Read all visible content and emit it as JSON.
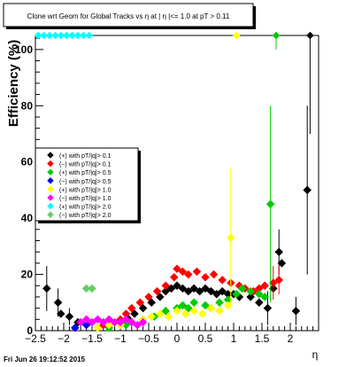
{
  "chart_data": {
    "type": "scatter",
    "title": "Clone wrt Geom for Global Tracks vs  η at | η |<= 1.0 at pT > 0.11",
    "xlabel": "η",
    "ylabel": "Efficiency (%)",
    "footer": "Fri Jun 26 19:12:52 2015",
    "xlim": [
      -2.5,
      2.5
    ],
    "ylim": [
      0,
      105
    ],
    "x_ticks": [
      -2.5,
      -2,
      -1.5,
      -1,
      -0.5,
      0,
      0.5,
      1,
      1.5,
      2
    ],
    "x_tick_labels": [
      "−2.5",
      "−2",
      "−1.5",
      "−1",
      "−0.5",
      "0",
      "0.5",
      "1",
      "1.5",
      "2"
    ],
    "y_ticks": [
      0,
      20,
      40,
      60,
      80,
      100
    ],
    "y_tick_labels": [
      "0",
      "20",
      "40",
      "60",
      "80",
      "100"
    ],
    "grid": false,
    "legend_position": "left-middle",
    "series": [
      {
        "name": "(+) with pT/|q|> 0.1",
        "color": "#000000",
        "marker": "diamond",
        "points": [
          [
            -2.3,
            15
          ],
          [
            -2.1,
            10
          ],
          [
            -2.05,
            6
          ],
          [
            -1.9,
            5
          ],
          [
            -1.75,
            3
          ],
          [
            -1.0,
            2
          ],
          [
            -0.85,
            4
          ],
          [
            -0.75,
            6
          ],
          [
            -0.6,
            8
          ],
          [
            -0.45,
            10
          ],
          [
            -0.3,
            12
          ],
          [
            -0.2,
            14
          ],
          [
            -0.1,
            15
          ],
          [
            0.0,
            16
          ],
          [
            0.1,
            15
          ],
          [
            0.2,
            14
          ],
          [
            0.3,
            15
          ],
          [
            0.4,
            14
          ],
          [
            0.5,
            15
          ],
          [
            0.6,
            14
          ],
          [
            0.7,
            13
          ],
          [
            0.8,
            14
          ],
          [
            0.9,
            13
          ],
          [
            1.0,
            13
          ],
          [
            1.1,
            12
          ],
          [
            1.3,
            12
          ],
          [
            1.45,
            10
          ],
          [
            1.6,
            8
          ],
          [
            1.7,
            15
          ],
          [
            1.8,
            28
          ],
          [
            1.85,
            24
          ],
          [
            2.1,
            7
          ],
          [
            2.3,
            50
          ],
          [
            2.35,
            105
          ]
        ],
        "errors": [
          [
            -2.3,
            8
          ],
          [
            -2.1,
            5
          ],
          [
            -1.9,
            3
          ],
          [
            1.6,
            6
          ],
          [
            1.8,
            8
          ],
          [
            2.1,
            5
          ],
          [
            2.3,
            30
          ],
          [
            2.35,
            35
          ]
        ]
      },
      {
        "name": "(−) with pT/|q|> 0.1",
        "color": "#ff0000",
        "marker": "diamond",
        "points": [
          [
            -1.3,
            2
          ],
          [
            -1.15,
            3
          ],
          [
            -1.0,
            4
          ],
          [
            -0.9,
            6
          ],
          [
            -0.8,
            8
          ],
          [
            -0.65,
            10
          ],
          [
            -0.5,
            12
          ],
          [
            -0.35,
            14
          ],
          [
            -0.2,
            16
          ],
          [
            -0.05,
            19
          ],
          [
            0.0,
            22
          ],
          [
            0.1,
            21
          ],
          [
            0.2,
            20
          ],
          [
            0.35,
            21
          ],
          [
            0.5,
            19
          ],
          [
            0.65,
            20
          ],
          [
            0.8,
            18
          ],
          [
            0.95,
            17
          ],
          [
            1.1,
            16
          ],
          [
            1.2,
            15
          ],
          [
            1.35,
            14
          ],
          [
            1.45,
            15
          ],
          [
            1.55,
            16
          ],
          [
            1.7,
            17
          ],
          [
            1.8,
            18
          ]
        ],
        "errors": [
          [
            1.7,
            6
          ],
          [
            1.8,
            5
          ]
        ]
      },
      {
        "name": "(+) with pT/|q|> 0.5",
        "color": "#00cc00",
        "marker": "diamond",
        "points": [
          [
            -1.2,
            1
          ],
          [
            -0.9,
            2
          ],
          [
            -0.6,
            4
          ],
          [
            -0.4,
            5
          ],
          [
            -0.2,
            7
          ],
          [
            0.0,
            8
          ],
          [
            0.1,
            9
          ],
          [
            0.2,
            8
          ],
          [
            0.3,
            10
          ],
          [
            0.5,
            9
          ],
          [
            0.6,
            8
          ],
          [
            0.75,
            10
          ],
          [
            0.9,
            11
          ],
          [
            1.05,
            13
          ],
          [
            1.15,
            15
          ],
          [
            1.3,
            14
          ],
          [
            1.45,
            13
          ],
          [
            1.55,
            12
          ],
          [
            1.65,
            45
          ],
          [
            1.75,
            105
          ]
        ],
        "errors": [
          [
            1.65,
            35
          ],
          [
            1.75,
            5
          ]
        ]
      },
      {
        "name": "(−) with pT/|q|> 0.5",
        "color": "#0000ff",
        "marker": "diamond",
        "points": [
          [
            -1.8,
            1
          ],
          [
            -1.6,
            2
          ],
          [
            -1.4,
            1
          ],
          [
            -1.2,
            2
          ],
          [
            -1.0,
            3
          ]
        ],
        "errors": []
      },
      {
        "name": "(+) with pT/|q|> 1.0",
        "color": "#ffff00",
        "marker": "diamond",
        "points": [
          [
            -1.4,
            1
          ],
          [
            -1.2,
            2
          ],
          [
            -1.0,
            2
          ],
          [
            -0.8,
            3
          ],
          [
            -0.6,
            4
          ],
          [
            -0.45,
            5
          ],
          [
            -0.3,
            6
          ],
          [
            -0.15,
            5
          ],
          [
            0.0,
            7
          ],
          [
            0.15,
            6
          ],
          [
            0.3,
            7
          ],
          [
            0.45,
            6
          ],
          [
            0.6,
            8
          ],
          [
            0.75,
            7
          ],
          [
            0.9,
            9
          ],
          [
            0.95,
            33
          ],
          [
            1.05,
            105
          ]
        ],
        "errors": [
          [
            0.95,
            25
          ]
        ]
      },
      {
        "name": "(−) with pT/|q|> 1.0",
        "color": "#ff00ff",
        "marker": "diamond",
        "points": [
          [
            -1.7,
            3
          ],
          [
            -1.6,
            4
          ],
          [
            -1.5,
            3
          ],
          [
            -1.4,
            4
          ],
          [
            -1.3,
            3
          ],
          [
            -1.2,
            4
          ],
          [
            -1.1,
            3
          ],
          [
            -1.0,
            3
          ],
          [
            -0.9,
            4
          ],
          [
            -0.8,
            3
          ],
          [
            -0.7,
            2
          ],
          [
            -0.6,
            3
          ]
        ],
        "errors": []
      },
      {
        "name": "(+) with pT/|q|> 2.0",
        "color": "#00ffff",
        "marker": "diamond",
        "points": [
          [
            -2.45,
            105
          ],
          [
            -2.35,
            105
          ],
          [
            -2.25,
            105
          ],
          [
            -2.15,
            105
          ],
          [
            -2.05,
            105
          ],
          [
            -1.95,
            105
          ],
          [
            -1.85,
            105
          ],
          [
            -1.75,
            105
          ],
          [
            -1.65,
            105
          ],
          [
            -1.55,
            105
          ]
        ],
        "errors": []
      },
      {
        "name": "(−) with pT/|q|> 2.0",
        "color": "#66cc66",
        "marker": "diamond",
        "points": [
          [
            -1.6,
            15
          ],
          [
            -1.5,
            15
          ]
        ],
        "errors": []
      }
    ]
  }
}
